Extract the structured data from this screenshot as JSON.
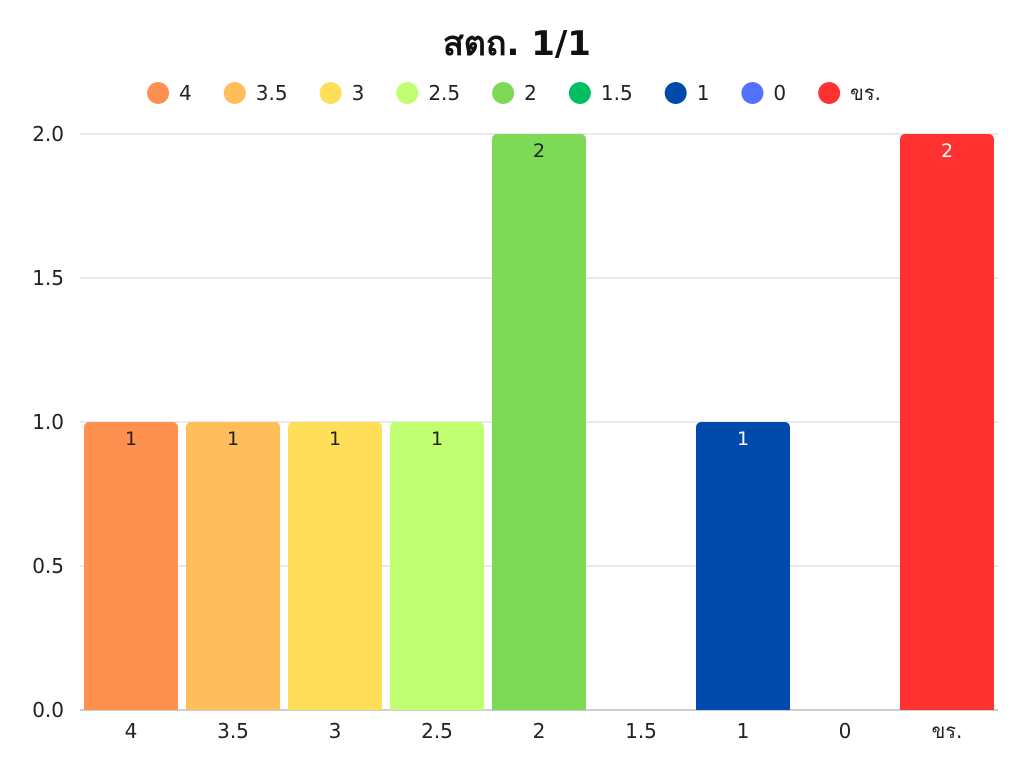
{
  "chart_data": {
    "type": "bar",
    "title": "สตถ. 1/1",
    "xlabel": "",
    "ylabel": "",
    "categories": [
      "4",
      "3.5",
      "3",
      "2.5",
      "2",
      "1.5",
      "1",
      "0",
      "ขร."
    ],
    "values": [
      1,
      1,
      1,
      1,
      2,
      0,
      1,
      0,
      2
    ],
    "colors": [
      "#ff9150",
      "#ffbd5c",
      "#ffde59",
      "#c1ff72",
      "#7ed957",
      "#00bf63",
      "#004aad",
      "#5271ff",
      "#ff3131"
    ],
    "data_label_colors": [
      "#222222",
      "#222222",
      "#222222",
      "#222222",
      "#222222",
      "#222222",
      "#ffffff",
      "#222222",
      "#ffffff"
    ],
    "legend": {
      "placement": "top",
      "entries": [
        "4",
        "3.5",
        "3",
        "2.5",
        "2",
        "1.5",
        "1",
        "0",
        "ขร."
      ]
    },
    "ylim": [
      0,
      2
    ],
    "yticks": [
      "0.0",
      "0.5",
      "1.0",
      "1.5",
      "2.0"
    ],
    "grid": true
  }
}
